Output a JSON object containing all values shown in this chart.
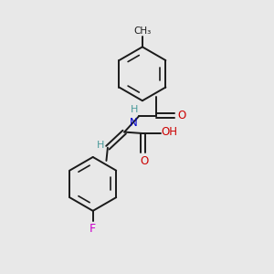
{
  "background_color": "#e8e8e8",
  "bond_color": "#1a1a1a",
  "atom_colors": {
    "N": "#0000cc",
    "O": "#cc0000",
    "F": "#cc00cc",
    "C": "#1a1a1a",
    "H": "#4a9a9a"
  },
  "figsize": [
    3.0,
    3.0
  ],
  "dpi": 100,
  "xlim": [
    0,
    10
  ],
  "ylim": [
    0,
    10
  ]
}
